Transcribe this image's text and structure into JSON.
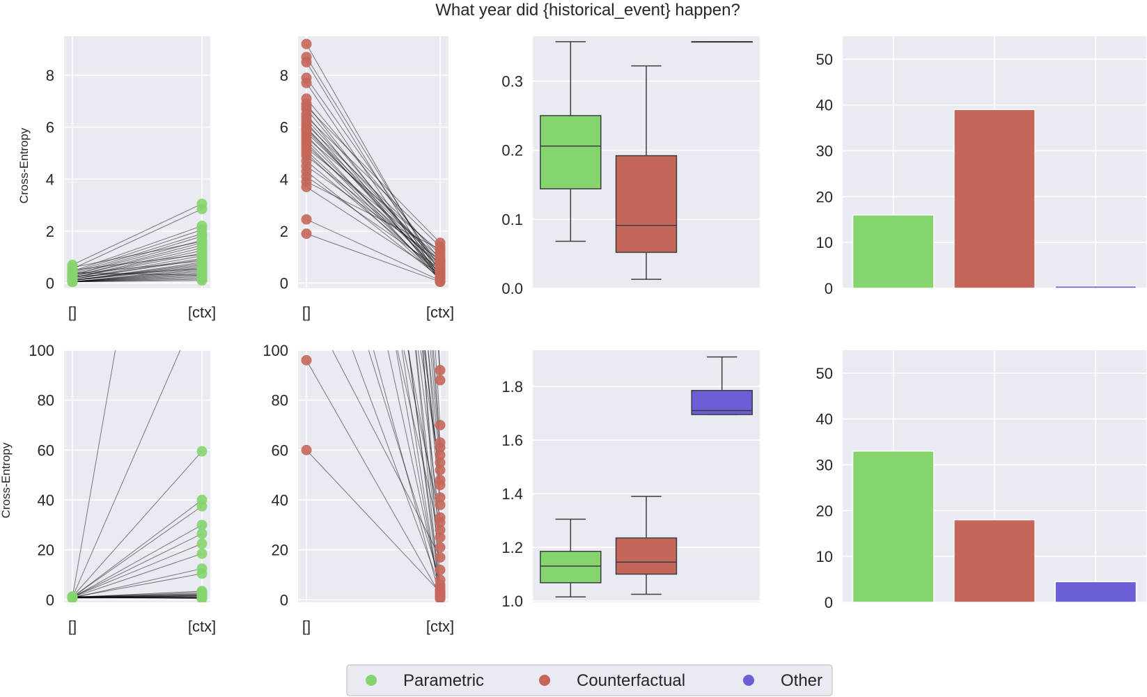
{
  "title": "What year did {historical_event} happen?",
  "ylabel": "Cross-Entropy",
  "colors": {
    "parametric": "#86d46e",
    "counterfactual": "#c4675a",
    "other": "#6a5fd6",
    "background": "#eaeaf2",
    "grid": "#ffffff",
    "text": "#262626"
  },
  "legend": {
    "placement": "bottom-center",
    "items": [
      {
        "label": "Parametric",
        "color_key": "parametric"
      },
      {
        "label": "Counterfactual",
        "color_key": "counterfactual"
      },
      {
        "label": "Other",
        "color_key": "other"
      }
    ]
  },
  "chart_data": [
    {
      "type": "scatter",
      "row": 1,
      "col": 1,
      "color_key": "parametric",
      "ylabel": "Cross-Entropy",
      "x_categories": [
        "[]",
        "[ctx]"
      ],
      "ylim": [
        -0.2,
        9.5
      ],
      "yticks": [
        0,
        2,
        4,
        6,
        8
      ],
      "grid": true,
      "pairs": [
        [
          0.7,
          3.05
        ],
        [
          0.55,
          2.85
        ],
        [
          0.45,
          2.2
        ],
        [
          0.4,
          2.05
        ],
        [
          0.35,
          1.9
        ],
        [
          0.3,
          1.8
        ],
        [
          0.3,
          1.65
        ],
        [
          0.25,
          1.55
        ],
        [
          0.25,
          1.45
        ],
        [
          0.2,
          1.35
        ],
        [
          0.2,
          1.25
        ],
        [
          0.2,
          1.15
        ],
        [
          0.15,
          1.05
        ],
        [
          0.15,
          0.95
        ],
        [
          0.15,
          0.9
        ],
        [
          0.1,
          0.8
        ],
        [
          0.1,
          0.75
        ],
        [
          0.1,
          0.7
        ],
        [
          0.1,
          0.65
        ],
        [
          0.1,
          0.6
        ],
        [
          0.05,
          0.55
        ],
        [
          0.05,
          0.5
        ],
        [
          0.05,
          0.45
        ],
        [
          0.05,
          0.4
        ],
        [
          0.05,
          0.35
        ],
        [
          0.05,
          0.3
        ],
        [
          0.05,
          0.25
        ],
        [
          0.05,
          0.2
        ],
        [
          0.05,
          0.15
        ],
        [
          0.05,
          0.1
        ],
        [
          0.6,
          1.6
        ],
        [
          0.5,
          1.1
        ],
        [
          0.35,
          0.85
        ],
        [
          0.25,
          0.55
        ],
        [
          0.4,
          0.3
        ]
      ]
    },
    {
      "type": "scatter",
      "row": 1,
      "col": 2,
      "color_key": "counterfactual",
      "x_categories": [
        "[]",
        "[ctx]"
      ],
      "ylim": [
        -0.2,
        9.5
      ],
      "yticks": [
        0,
        2,
        4,
        6,
        8
      ],
      "grid": true,
      "pairs": [
        [
          9.2,
          0.2
        ],
        [
          8.7,
          0.4
        ],
        [
          8.5,
          0.1
        ],
        [
          7.9,
          0.6
        ],
        [
          7.7,
          0.05
        ],
        [
          7.1,
          0.9
        ],
        [
          6.9,
          0.3
        ],
        [
          6.7,
          0.5
        ],
        [
          6.5,
          0.15
        ],
        [
          6.4,
          1.4
        ],
        [
          6.3,
          0.7
        ],
        [
          6.2,
          0.25
        ],
        [
          6.1,
          1.1
        ],
        [
          6.0,
          0.35
        ],
        [
          5.9,
          0.55
        ],
        [
          5.8,
          0.8
        ],
        [
          5.7,
          0.1
        ],
        [
          5.6,
          1.2
        ],
        [
          5.5,
          0.45
        ],
        [
          5.4,
          0.2
        ],
        [
          5.3,
          0.65
        ],
        [
          5.2,
          1.0
        ],
        [
          5.1,
          0.3
        ],
        [
          5.0,
          0.15
        ],
        [
          4.9,
          0.75
        ],
        [
          4.7,
          0.4
        ],
        [
          4.5,
          0.9
        ],
        [
          4.3,
          0.2
        ],
        [
          4.1,
          0.55
        ],
        [
          3.9,
          1.3
        ],
        [
          3.7,
          0.35
        ],
        [
          2.45,
          0.1
        ],
        [
          1.9,
          0.05
        ],
        [
          6.8,
          1.55
        ],
        [
          5.95,
          0.85
        ]
      ]
    },
    {
      "type": "box",
      "row": 1,
      "col": 3,
      "ylim": [
        0.0,
        0.365
      ],
      "yticks": [
        0.0,
        0.1,
        0.2,
        0.3
      ],
      "grid": true,
      "boxes": [
        {
          "color_key": "parametric",
          "whisker_low": 0.068,
          "q1": 0.144,
          "median": 0.206,
          "q3": 0.25,
          "whisker_high": 0.357
        },
        {
          "color_key": "counterfactual",
          "whisker_low": 0.013,
          "q1": 0.052,
          "median": 0.091,
          "q3": 0.192,
          "whisker_high": 0.322
        },
        {
          "color_key": "other",
          "whisker_low": 0.357,
          "q1": 0.357,
          "median": 0.357,
          "q3": 0.357,
          "whisker_high": 0.357
        }
      ]
    },
    {
      "type": "bar",
      "row": 1,
      "col": 4,
      "ylim": [
        0,
        55
      ],
      "yticks": [
        0,
        10,
        20,
        30,
        40,
        50
      ],
      "grid": true,
      "bars": [
        {
          "color_key": "parametric",
          "value": 16
        },
        {
          "color_key": "counterfactual",
          "value": 39
        },
        {
          "color_key": "other",
          "value": 0.5
        }
      ]
    },
    {
      "type": "scatter",
      "row": 2,
      "col": 1,
      "color_key": "parametric",
      "ylabel": "Cross-Entropy",
      "x_categories": [
        "[]",
        "[ctx]"
      ],
      "ylim": [
        -1,
        100
      ],
      "yticks": [
        0,
        20,
        40,
        60,
        80,
        100
      ],
      "grid": true,
      "pairs": [
        [
          1.2,
          59.5
        ],
        [
          1.0,
          40.0
        ],
        [
          1.1,
          37.5
        ],
        [
          0.9,
          30.0
        ],
        [
          1.0,
          26.5
        ],
        [
          1.2,
          22.5
        ],
        [
          1.0,
          18.5
        ],
        [
          0.8,
          12.5
        ],
        [
          1.0,
          10.5
        ],
        [
          0.9,
          3.0
        ],
        [
          1.1,
          2.0
        ],
        [
          1.0,
          1.5
        ],
        [
          0.8,
          1.0
        ],
        [
          1.0,
          0.5
        ],
        [
          1.2,
          2.5
        ],
        [
          0.9,
          1.8
        ],
        [
          1.0,
          3.5
        ],
        [
          0.7,
          0.8
        ],
        [
          1.0,
          1.2
        ],
        [
          1.1,
          0.6
        ],
        [
          0.9,
          2.2
        ],
        [
          1.0,
          1.0
        ],
        [
          1.3,
          0.9
        ],
        [
          0.8,
          1.6
        ],
        [
          1.0,
          120
        ],
        [
          1.0,
          300
        ]
      ]
    },
    {
      "type": "scatter",
      "row": 2,
      "col": 2,
      "color_key": "counterfactual",
      "x_categories": [
        "[]",
        "[ctx]"
      ],
      "ylim": [
        -1,
        100
      ],
      "yticks": [
        0,
        20,
        40,
        60,
        80,
        100
      ],
      "grid": true,
      "pairs": [
        [
          96,
          2
        ],
        [
          60,
          3
        ],
        [
          150,
          5
        ],
        [
          200,
          1
        ],
        [
          250,
          4
        ],
        [
          300,
          2
        ],
        [
          180,
          8
        ],
        [
          400,
          6
        ],
        [
          500,
          12
        ],
        [
          350,
          0.5
        ],
        [
          420,
          1.5
        ],
        [
          120,
          17
        ],
        [
          260,
          25
        ],
        [
          330,
          28
        ],
        [
          450,
          31
        ],
        [
          280,
          33
        ],
        [
          600,
          38
        ],
        [
          700,
          41
        ],
        [
          520,
          46
        ],
        [
          480,
          48
        ],
        [
          380,
          52
        ],
        [
          560,
          55
        ],
        [
          640,
          58
        ],
        [
          720,
          61
        ],
        [
          800,
          63
        ],
        [
          900,
          70
        ],
        [
          1000,
          88
        ],
        [
          1100,
          92
        ],
        [
          620,
          21
        ],
        [
          540,
          0.8
        ],
        [
          760,
          3.5
        ]
      ]
    },
    {
      "type": "box",
      "row": 2,
      "col": 3,
      "ylim": [
        0.995,
        1.935
      ],
      "yticks": [
        1.0,
        1.2,
        1.4,
        1.6,
        1.8
      ],
      "grid": true,
      "boxes": [
        {
          "color_key": "parametric",
          "whisker_low": 1.015,
          "q1": 1.068,
          "median": 1.13,
          "q3": 1.185,
          "whisker_high": 1.305
        },
        {
          "color_key": "counterfactual",
          "whisker_low": 1.025,
          "q1": 1.1,
          "median": 1.145,
          "q3": 1.235,
          "whisker_high": 1.39
        },
        {
          "color_key": "other",
          "whisker_low": 1.695,
          "q1": 1.695,
          "median": 1.71,
          "q3": 1.785,
          "whisker_high": 1.91
        }
      ]
    },
    {
      "type": "bar",
      "row": 2,
      "col": 4,
      "ylim": [
        0,
        55
      ],
      "yticks": [
        0,
        10,
        20,
        30,
        40,
        50
      ],
      "grid": true,
      "bars": [
        {
          "color_key": "parametric",
          "value": 33
        },
        {
          "color_key": "counterfactual",
          "value": 18
        },
        {
          "color_key": "other",
          "value": 4.5
        }
      ]
    }
  ]
}
